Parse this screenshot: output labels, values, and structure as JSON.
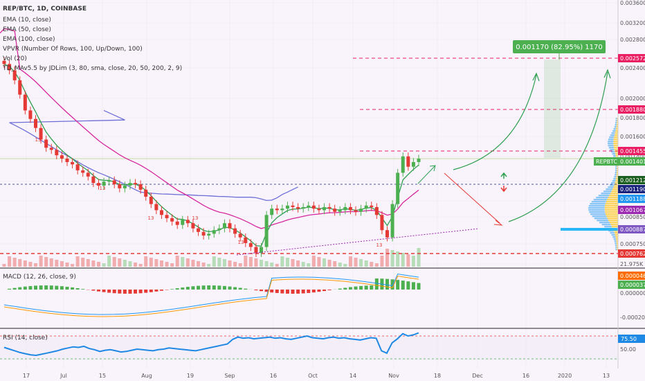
{
  "chart_data": {
    "type": "candlestick",
    "symbol_header": "REP/BTC, 1D, COINBASE",
    "indicators": [
      "EMA (10, close)",
      "EMA (50, close)",
      "EMA (100, close)",
      "VPVR (Number Of Rows, 100, Up/Down, 100)",
      "Vol (20)",
      "TD_MAv5.5 by JDLim (3, 80, sma, close, 20, 50, 200, 2, 9)"
    ],
    "price_axis": {
      "ticks": [
        "0.003600",
        "0.003200",
        "0.002800",
        "0.002400",
        "0.002000",
        "0.001800",
        "0.001600",
        "0.001400",
        "0.001200",
        "0.000950",
        "0.000850",
        "0.000750",
        "21.975K"
      ],
      "scale": "log"
    },
    "date_ticks": [
      "17",
      "Jul",
      "15",
      "Aug",
      "19",
      "Sep",
      "16",
      "Oct",
      "14",
      "Nov",
      "18",
      "Dec",
      "16",
      "2020",
      "13"
    ],
    "price_tags": [
      {
        "label": "0.002572",
        "price": 0.002572,
        "color": "#e91e63",
        "style": "dashed"
      },
      {
        "label": "0.001880",
        "price": 0.00188,
        "color": "#e91e63",
        "style": "dashed"
      },
      {
        "label": "0.001455",
        "price": 0.001455,
        "color": "#e91e63",
        "style": "dashed"
      },
      {
        "label": "REPBTC",
        "price": 0.001401,
        "color": "#4caf50"
      },
      {
        "label": "0.001401",
        "price": 0.001401,
        "color": "#4caf50"
      },
      {
        "label": "0.001212",
        "price": 0.001212,
        "color": "#1b5e20"
      },
      {
        "label": "0.001190",
        "price": 0.00119,
        "color": "#1a237e"
      },
      {
        "label": "0.001188",
        "price": 0.001188,
        "color": "#2196f3"
      },
      {
        "label": "0.001067",
        "price": 0.001067,
        "color": "#9c27b0"
      },
      {
        "label": "0.000887",
        "price": 0.000887,
        "color": "#7e57c2"
      },
      {
        "label": "0.000762",
        "price": 0.000762,
        "color": "#e53935",
        "style": "dashed"
      }
    ],
    "annotation": "0.001170 (82.95%) 1170",
    "td_labels": [
      "13",
      "13",
      "13",
      "13",
      "13",
      "13"
    ],
    "macd": {
      "title": "MACD (12, 26, close, 9)",
      "tags": [
        {
          "label": "0.000046",
          "color": "#ff6d00"
        },
        {
          "label": "0.000037",
          "color": "#4caf50"
        }
      ],
      "ticks": [
        "0.000000",
        "-0.000200"
      ]
    },
    "rsi": {
      "title": "RSI (14, close)",
      "value_tag": "75.50",
      "ticks": [
        "50.00"
      ],
      "values": [
        50,
        47,
        44,
        41,
        39,
        37,
        36,
        38,
        40,
        42,
        44,
        47,
        49,
        51,
        50,
        52,
        48,
        46,
        43,
        45,
        46,
        44,
        42,
        43,
        45,
        47,
        46,
        45,
        44,
        46,
        47,
        49,
        48,
        47,
        46,
        45,
        44,
        46,
        48,
        50,
        52,
        54,
        56,
        64,
        68,
        66,
        67,
        65,
        66,
        67,
        68,
        66,
        67,
        65,
        64,
        66,
        68,
        70,
        67,
        66,
        65,
        67,
        68,
        66,
        67,
        65,
        64,
        63,
        65,
        67,
        66,
        44,
        40,
        58,
        65,
        74,
        70,
        72,
        75.5
      ]
    },
    "series_prices": [
      0.00255,
      0.00245,
      0.0023,
      0.0021,
      0.0019,
      0.0018,
      0.0017,
      0.00158,
      0.0015,
      0.00148,
      0.00143,
      0.0014,
      0.00137,
      0.00135,
      0.0013,
      0.00128,
      0.00125,
      0.0012,
      0.00118,
      0.00121,
      0.00122,
      0.00119,
      0.00116,
      0.00118,
      0.0012,
      0.00119,
      0.00115,
      0.0011,
      0.00105,
      0.00101,
      0.00098,
      0.00096,
      0.00094,
      0.00092,
      0.00095,
      0.00093,
      0.0009,
      0.00088,
      0.00086,
      0.00087,
      0.00089,
      0.0009,
      0.00093,
      0.0009,
      0.00087,
      0.00085,
      0.00082,
      0.0008,
      0.00077,
      0.0008,
      0.00098,
      0.00102,
      0.00101,
      0.00102,
      0.00104,
      0.00103,
      0.00102,
      0.00103,
      0.00104,
      0.00102,
      0.00101,
      0.00103,
      0.00102,
      0.001,
      0.00101,
      0.00103,
      0.00101,
      0.001,
      0.00102,
      0.00104,
      0.00103,
      0.00098,
      0.00089,
      0.00085,
      0.00105,
      0.00128,
      0.00142,
      0.00133,
      0.00137,
      0.0014
    ]
  }
}
